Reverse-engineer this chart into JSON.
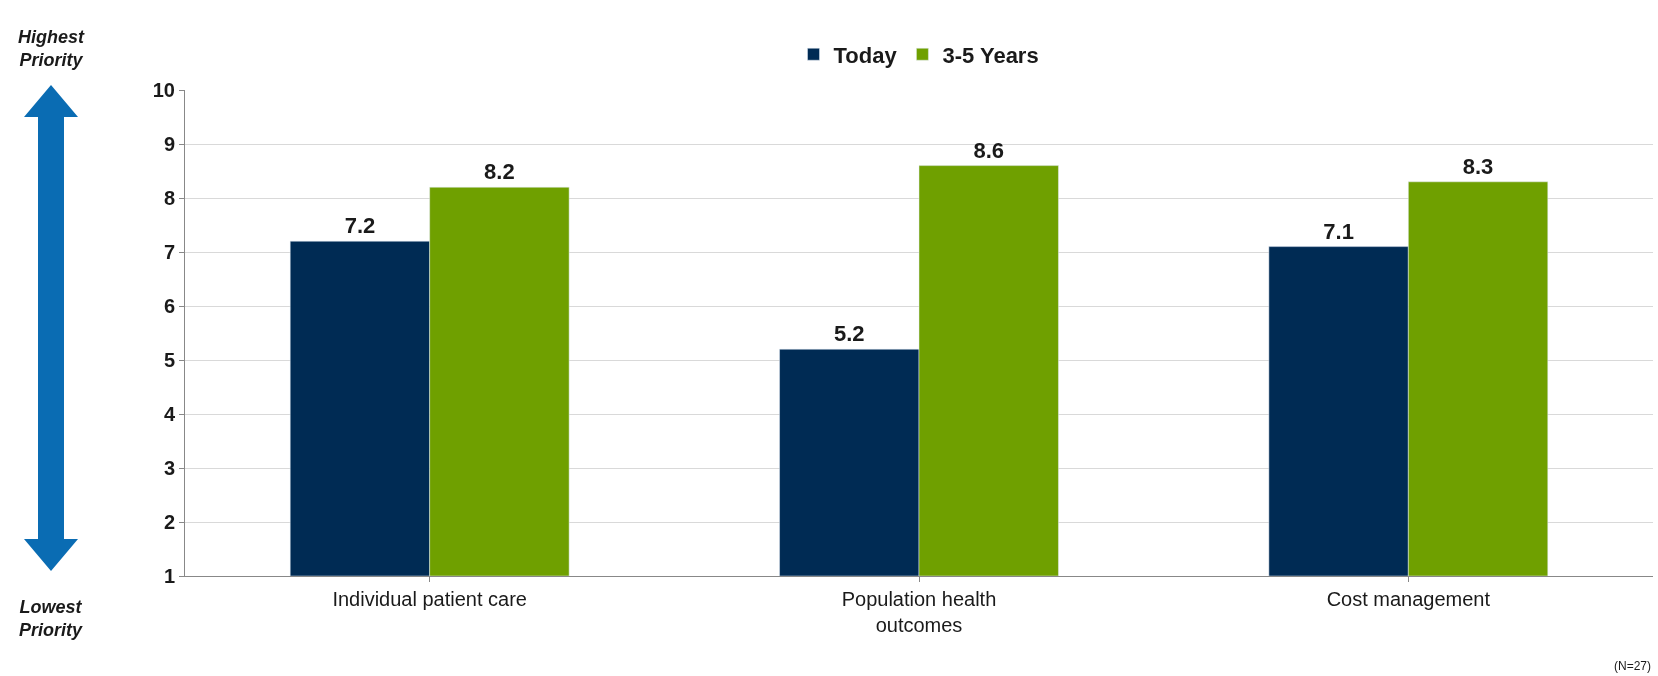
{
  "chart_data": {
    "type": "bar",
    "categories": [
      "Individual patient care",
      "Population health outcomes",
      "Cost management"
    ],
    "series": [
      {
        "name": "Today",
        "color": "#002b54",
        "values": [
          7.2,
          5.2,
          7.1
        ]
      },
      {
        "name": "3-5 Years",
        "color": "#6fa000",
        "values": [
          8.2,
          8.6,
          8.3
        ]
      }
    ],
    "ylim": [
      1,
      10
    ],
    "yticks": [
      1,
      2,
      3,
      4,
      5,
      6,
      7,
      8,
      9,
      10
    ],
    "grid": "y",
    "legend": "top",
    "data_labels": true,
    "annotations": [
      "Highest Priority",
      "Lowest Priority",
      "(N=27)"
    ]
  }
}
